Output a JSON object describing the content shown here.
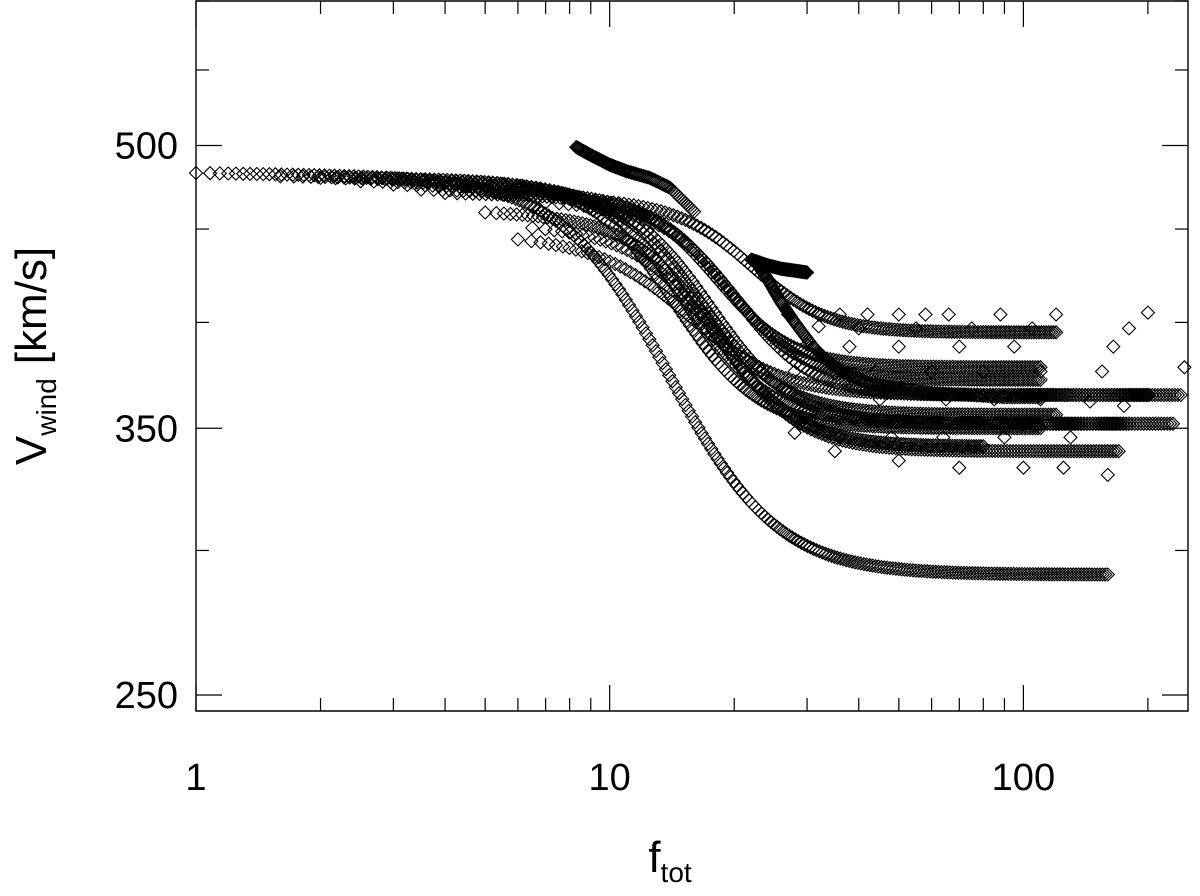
{
  "chart_data": {
    "type": "scatter",
    "title": "",
    "xlabel": {
      "main": "f",
      "sub": "tot"
    },
    "ylabel": {
      "main": "V",
      "sub": "wind",
      "unit": "[km/s]"
    },
    "xscale": "log",
    "yscale": "log",
    "xlim": [
      1,
      250
    ],
    "ylim": [
      245,
      600
    ],
    "x_ticks": [
      1,
      10,
      100
    ],
    "x_tick_labels": [
      "1",
      "10",
      "100"
    ],
    "y_ticks": [
      250,
      350,
      500
    ],
    "y_tick_labels": [
      "250",
      "350",
      "500"
    ],
    "marker": "open-diamond",
    "grid": false,
    "legend": "none",
    "curves": [
      {
        "x_start": 1.0,
        "x_knee": 13.0,
        "x_end": 160,
        "y_start": 483,
        "y_end": 291,
        "width": 0.13,
        "npts": 260
      },
      {
        "x_start": 1.6,
        "x_knee": 14.0,
        "x_end": 110,
        "y_start": 481,
        "y_end": 350,
        "width": 0.1,
        "npts": 220
      },
      {
        "x_start": 2.0,
        "x_knee": 15.0,
        "x_end": 230,
        "y_start": 480,
        "y_end": 352,
        "width": 0.1,
        "npts": 220
      },
      {
        "x_start": 2.5,
        "x_knee": 16.0,
        "x_end": 120,
        "y_start": 478,
        "y_end": 356,
        "width": 0.1,
        "npts": 200
      },
      {
        "x_start": 3.0,
        "x_knee": 17.0,
        "x_end": 180,
        "y_start": 476,
        "y_end": 352,
        "width": 0.1,
        "npts": 200
      },
      {
        "x_start": 3.5,
        "x_knee": 18.0,
        "x_end": 110,
        "y_start": 473,
        "y_end": 378,
        "width": 0.09,
        "npts": 180
      },
      {
        "x_start": 4.0,
        "x_knee": 19.0,
        "x_end": 110,
        "y_start": 471,
        "y_end": 372,
        "width": 0.09,
        "npts": 180
      },
      {
        "x_start": 5.0,
        "x_knee": 17.5,
        "x_end": 80,
        "y_start": 460,
        "y_end": 342,
        "width": 0.1,
        "npts": 160
      },
      {
        "x_start": 6.0,
        "x_knee": 15.5,
        "x_end": 200,
        "y_start": 446,
        "y_end": 365,
        "width": 0.11,
        "npts": 170
      },
      {
        "x_start": 6.5,
        "x_knee": 18.0,
        "x_end": 170,
        "y_start": 452,
        "y_end": 340,
        "width": 0.1,
        "npts": 160
      },
      {
        "x_start": 7.0,
        "x_knee": 20.0,
        "x_end": 240,
        "y_start": 466,
        "y_end": 365,
        "width": 0.09,
        "npts": 170
      },
      {
        "x_start": 8.0,
        "x_knee": 22.0,
        "x_end": 120,
        "y_start": 468,
        "y_end": 395,
        "width": 0.09,
        "npts": 150
      }
    ],
    "branches": [
      {
        "x": [
          8.3,
          9.0,
          10.0,
          11.0,
          12.5,
          14.0,
          16.0
        ],
        "y": [
          499,
          494,
          488,
          484,
          480,
          474,
          460
        ]
      },
      {
        "x": [
          22.0,
          24.0,
          26.0,
          28.0,
          30.0
        ],
        "y": [
          433,
          430,
          428,
          427,
          426
        ]
      },
      {
        "x": [
          22.5,
          24.0,
          26.0,
          28.0,
          31.0,
          34.0,
          38.0,
          43.0,
          50.0,
          60.0,
          75.0,
          90.0,
          110.0
        ],
        "y": [
          432,
          423,
          410,
          400,
          388,
          380,
          374,
          370,
          368,
          366,
          365,
          364,
          364
        ]
      }
    ],
    "scatter_points": {
      "x": [
        27,
        32,
        36,
        42,
        50,
        58,
        66,
        88,
        120,
        200,
        32,
        40,
        55,
        75,
        105,
        180,
        245,
        30,
        38,
        50,
        70,
        95,
        165,
        28,
        35,
        44,
        60,
        80,
        110,
        155,
        45,
        65,
        85,
        110,
        145,
        175,
        28,
        36,
        48,
        64,
        90,
        130,
        35,
        50,
        70,
        100,
        125,
        160
      ],
      "y": [
        404,
        404,
        404,
        404,
        404,
        404,
        404,
        404,
        404,
        405,
        398,
        397,
        397,
        397,
        397,
        397,
        378,
        389,
        388,
        388,
        388,
        388,
        388,
        376,
        375,
        376,
        376,
        376,
        376,
        376,
        363,
        363,
        363,
        363,
        362,
        360,
        348,
        346,
        346,
        346,
        346,
        346,
        340,
        336,
        333,
        333,
        333,
        330
      ]
    }
  }
}
